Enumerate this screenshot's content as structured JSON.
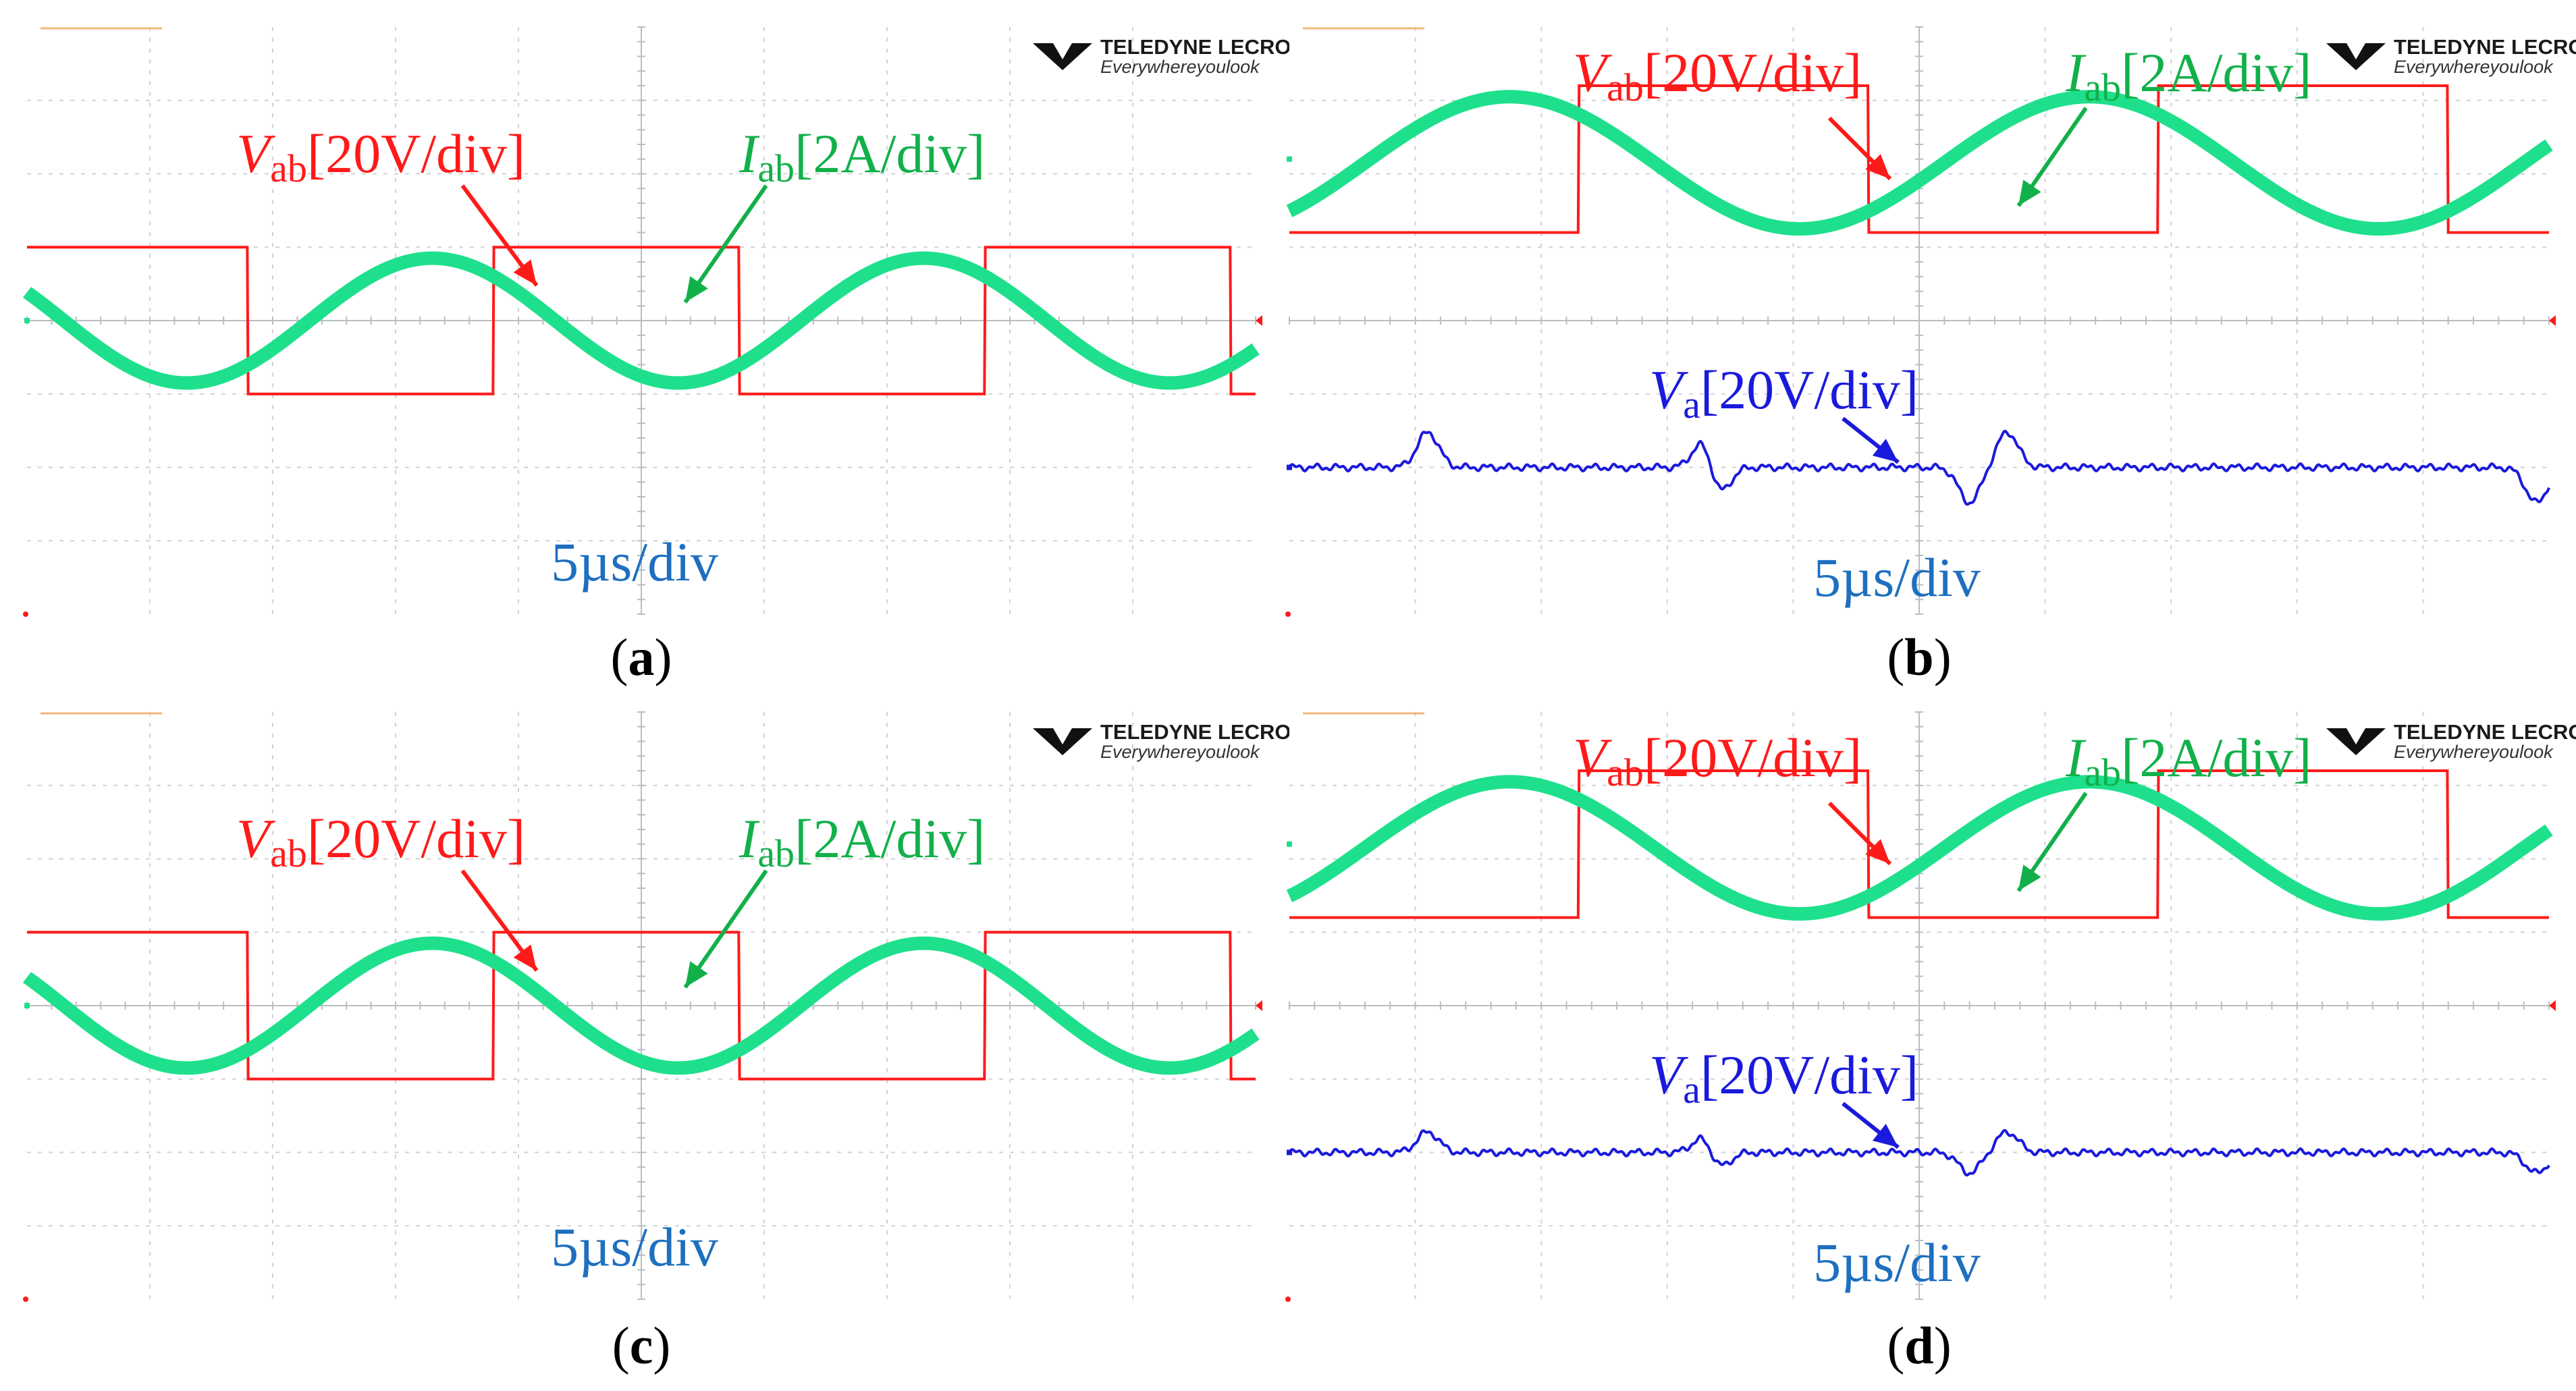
{
  "colors": {
    "vab": "#ff1a1a",
    "iab": "#1ee08c",
    "va": "#1a1adc",
    "timebase": "#1e6fbf",
    "grid": "#cfd2d6",
    "label_green": "#12b04a",
    "label_red": "#ff1a1a",
    "label_blue": "#1a1adc"
  },
  "brand": {
    "name": "TELEDYNE LECROY",
    "tagline": "Everywhereyoulook",
    "logo_icon": "teledyne-logo-icon"
  },
  "labels": {
    "vab_main": "V",
    "vab_sub": "ab",
    "vab_scale": "[20V/div]",
    "iab_main": "I",
    "iab_sub": "ab",
    "iab_scale": "[2A/div]",
    "va_main": "V",
    "va_sub": "a",
    "va_scale": "[20V/div]",
    "timebase": "5µs/div"
  },
  "panels": [
    {
      "caption_open": "(",
      "caption_letter": "a",
      "caption_close": ")",
      "has_va": false
    },
    {
      "caption_open": "(",
      "caption_letter": "b",
      "caption_close": ")",
      "has_va": true
    },
    {
      "caption_open": "(",
      "caption_letter": "c",
      "caption_close": ")",
      "has_va": false
    },
    {
      "caption_open": "(",
      "caption_letter": "d",
      "caption_close": ")",
      "has_va": true
    }
  ],
  "chart_data": [
    {
      "type": "line",
      "panel": "a",
      "x_unit": "div",
      "xlim": [
        0,
        10
      ],
      "ylim": [
        -4,
        4
      ],
      "grid": true,
      "series": [
        {
          "name": "Vab[20V/div]",
          "kind": "square",
          "period_div": 4.0,
          "phase_div": 3.8,
          "amplitude_div": 1.0,
          "offset_div": 0.0
        },
        {
          "name": "Iab[2A/div]",
          "kind": "sine",
          "period_div": 4.0,
          "phase_div": 2.3,
          "amplitude_div": 0.85,
          "offset_div": 0.0
        }
      ]
    },
    {
      "type": "line",
      "panel": "b",
      "x_unit": "div",
      "xlim": [
        0,
        10
      ],
      "ylim": [
        -4,
        4
      ],
      "grid": true,
      "series": [
        {
          "name": "Vab[20V/div]",
          "kind": "square",
          "period_div": 4.6,
          "phase_div": 2.3,
          "amplitude_div": 1.0,
          "offset_div": 2.2
        },
        {
          "name": "Iab[2A/div]",
          "kind": "sine",
          "period_div": 4.6,
          "phase_div": 0.6,
          "amplitude_div": 0.9,
          "offset_div": 2.15
        },
        {
          "name": "Va[20V/div]",
          "kind": "bumps",
          "period_div": 4.6,
          "bump_pos_div": [
            1.1,
            3.3,
            5.7,
            7.9
          ],
          "bump_neg_div": [
            3.4,
            5.4,
            7.9,
            9.9
          ],
          "bump_amplitude_div": 0.48,
          "offset_div": -2.0
        }
      ]
    },
    {
      "type": "line",
      "panel": "c",
      "x_unit": "div",
      "xlim": [
        0,
        10
      ],
      "ylim": [
        -4,
        4
      ],
      "grid": true,
      "series": [
        {
          "name": "Vab[20V/div]",
          "kind": "square",
          "period_div": 4.0,
          "phase_div": 3.8,
          "amplitude_div": 1.0,
          "offset_div": 0.0
        },
        {
          "name": "Iab[2A/div]",
          "kind": "sine",
          "period_div": 4.0,
          "phase_div": 2.3,
          "amplitude_div": 0.85,
          "offset_div": 0.0
        }
      ]
    },
    {
      "type": "line",
      "panel": "d",
      "x_unit": "div",
      "xlim": [
        0,
        10
      ],
      "ylim": [
        -4,
        4
      ],
      "grid": true,
      "series": [
        {
          "name": "Vab[20V/div]",
          "kind": "square",
          "period_div": 4.6,
          "phase_div": 2.3,
          "amplitude_div": 1.0,
          "offset_div": 2.2
        },
        {
          "name": "Iab[2A/div]",
          "kind": "sine",
          "period_div": 4.6,
          "phase_div": 0.6,
          "amplitude_div": 0.9,
          "offset_div": 2.15
        },
        {
          "name": "Va[20V/div]",
          "kind": "bumps",
          "period_div": 4.6,
          "bump_pos_div": [
            1.1,
            3.3,
            5.7,
            7.9
          ],
          "bump_neg_div": [
            3.4,
            5.4,
            7.9,
            9.9
          ],
          "bump_amplitude_div": 0.28,
          "offset_div": -2.0
        }
      ]
    }
  ]
}
